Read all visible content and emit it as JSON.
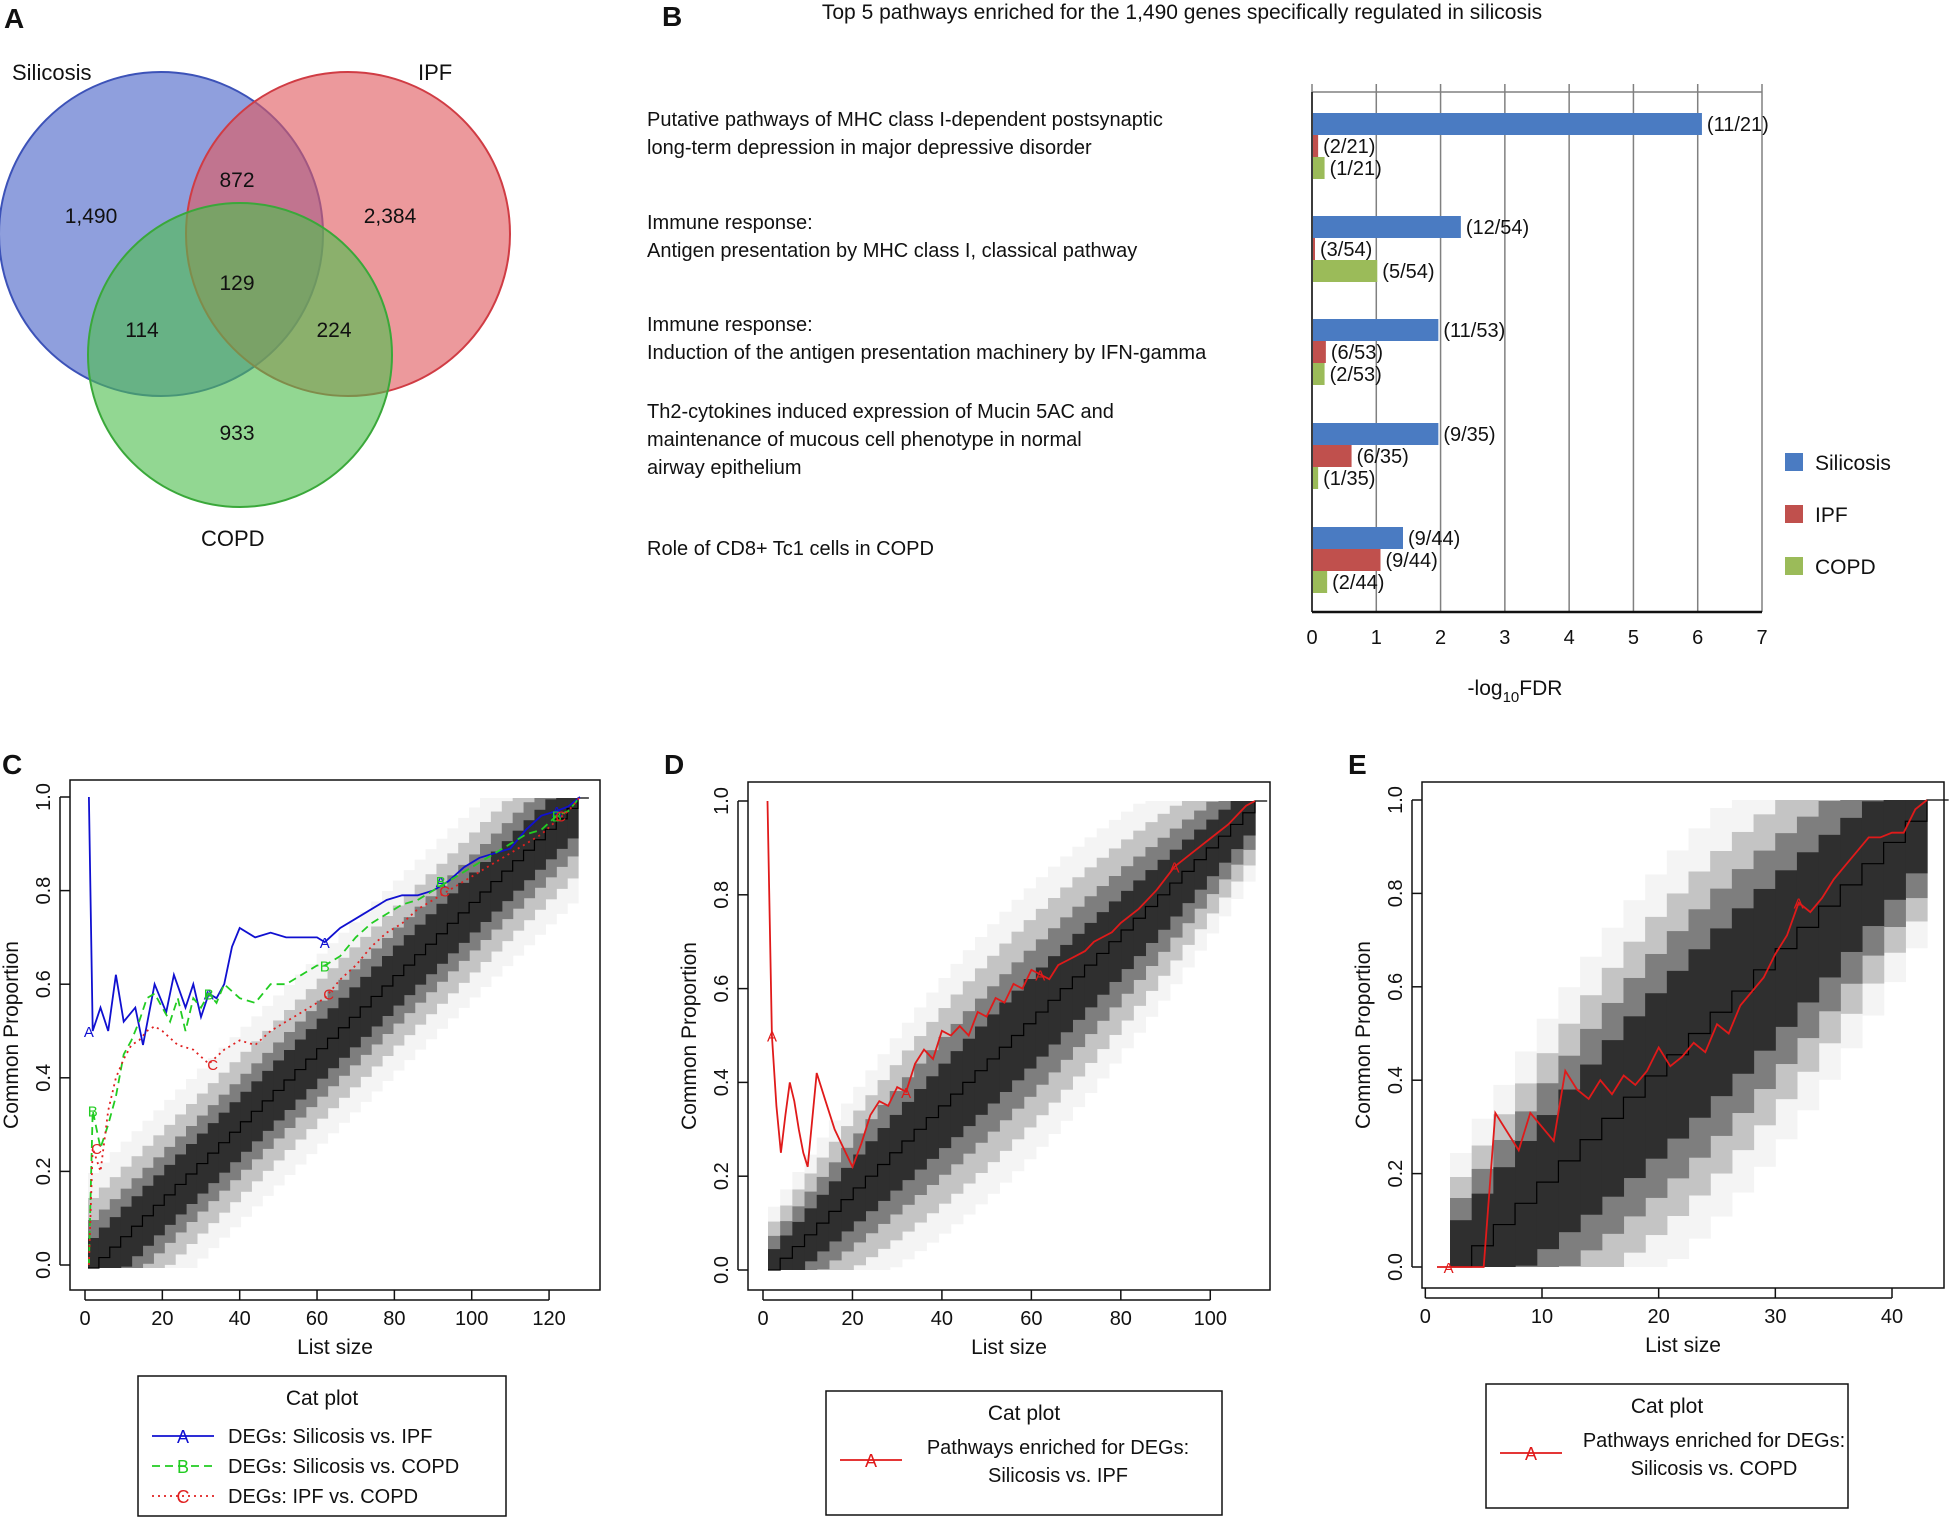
{
  "colors": {
    "silicosis": "#4a64c8",
    "ipf": "#e05a5f",
    "copd": "#4fbf4f",
    "bar_silicosis": "#4a7bc2",
    "bar_ipf": "#c0504d",
    "bar_copd": "#9bbb59",
    "line_a": "#1010d0",
    "line_b": "#22cc22",
    "line_c": "#e02020",
    "line_red": "#e01a1a"
  },
  "panel_labels": {
    "a": "A",
    "b": "B",
    "c": "C",
    "d": "D",
    "e": "E"
  },
  "chart_data": [
    {
      "type": "venn",
      "panel": "A",
      "sets": [
        "Silicosis",
        "IPF",
        "COPD"
      ],
      "regions": [
        {
          "sets": [
            "Silicosis"
          ],
          "label": "1,490"
        },
        {
          "sets": [
            "IPF"
          ],
          "label": "2,384"
        },
        {
          "sets": [
            "COPD"
          ],
          "label": "933"
        },
        {
          "sets": [
            "Silicosis",
            "IPF"
          ],
          "label": "872"
        },
        {
          "sets": [
            "Silicosis",
            "COPD"
          ],
          "label": "114"
        },
        {
          "sets": [
            "IPF",
            "COPD"
          ],
          "label": "224"
        },
        {
          "sets": [
            "Silicosis",
            "IPF",
            "COPD"
          ],
          "label": "129"
        }
      ]
    },
    {
      "type": "bar",
      "orientation": "horizontal",
      "panel": "B",
      "title": "Top 5 pathways enriched for the 1,490 genes specifically regulated in silicosis",
      "xlabel_main": "-log",
      "xlabel_sub": "10",
      "xlabel_tail": "FDR",
      "xlim": [
        0,
        7
      ],
      "xticks": [
        "0",
        "1",
        "2",
        "3",
        "4",
        "5",
        "6",
        "7"
      ],
      "legend": [
        "Silicosis",
        "IPF",
        "COPD"
      ],
      "categories": [
        {
          "lines": [
            "Putative pathways of MHC class I-dependent postsynaptic",
            "long-term depression in major depressive disorder"
          ]
        },
        {
          "lines": [
            "Immune response:",
            "Antigen presentation by MHC class I, classical pathway"
          ]
        },
        {
          "lines": [
            "Immune response:",
            "Induction of the antigen presentation machinery by IFN-gamma"
          ]
        },
        {
          "lines": [
            "Th2-cytokines induced expression of Mucin 5AC and",
            "maintenance of mucous cell phenotype in normal",
            "airway epithelium"
          ]
        },
        {
          "lines": [
            "Role of CD8+ Tc1 cells in COPD"
          ]
        }
      ],
      "series": [
        {
          "name": "Silicosis",
          "values": [
            6.05,
            2.3,
            1.95,
            1.95,
            1.4
          ],
          "labels": [
            "(11/21)",
            "(12/54)",
            "(11/53)",
            "(9/35)",
            "(9/44)"
          ]
        },
        {
          "name": "IPF",
          "values": [
            0.08,
            0.02,
            0.2,
            0.6,
            1.05
          ],
          "labels": [
            "(2/21)",
            "(3/54)",
            "(6/53)",
            "(6/35)",
            "(9/44)"
          ]
        },
        {
          "name": "COPD",
          "values": [
            0.18,
            1.0,
            0.18,
            0.08,
            0.22
          ],
          "labels": [
            "(1/21)",
            "(5/54)",
            "(2/53)",
            "(1/35)",
            "(2/44)"
          ]
        }
      ]
    },
    {
      "type": "line",
      "panel": "C",
      "xlabel": "List size",
      "ylabel": "Common Proportion",
      "xlim": [
        0,
        128
      ],
      "ylim": [
        0,
        1
      ],
      "xticks": [
        0,
        20,
        40,
        60,
        80,
        100,
        120
      ],
      "yticks": [
        "0.0",
        "0.2",
        "0.4",
        "0.6",
        "0.8",
        "1.0"
      ],
      "legend_title": "Cat plot",
      "series": [
        {
          "name": "DEGs: Silicosis vs. IPF",
          "marker": "A",
          "style": "solid",
          "x": [
            1,
            2,
            4,
            6,
            8,
            10,
            13,
            15,
            18,
            21,
            23,
            26,
            28,
            30,
            32,
            34,
            36,
            38,
            40,
            44,
            48,
            52,
            56,
            60,
            62,
            66,
            70,
            74,
            78,
            82,
            86,
            90,
            94,
            98,
            102,
            106,
            110,
            114,
            118,
            122,
            125,
            128
          ],
          "y": [
            1.0,
            0.5,
            0.55,
            0.5,
            0.62,
            0.52,
            0.55,
            0.47,
            0.6,
            0.54,
            0.62,
            0.55,
            0.6,
            0.53,
            0.58,
            0.57,
            0.6,
            0.68,
            0.72,
            0.7,
            0.71,
            0.7,
            0.7,
            0.7,
            0.69,
            0.72,
            0.74,
            0.76,
            0.78,
            0.79,
            0.79,
            0.8,
            0.82,
            0.85,
            0.87,
            0.88,
            0.89,
            0.93,
            0.96,
            0.97,
            0.98,
            1.0
          ],
          "markers": [
            [
              1,
              0.5
            ],
            [
              32,
              0.58
            ],
            [
              62,
              0.69
            ],
            [
              92,
              0.82
            ],
            [
              122,
              0.97
            ]
          ]
        },
        {
          "name": "DEGs: Silicosis vs. COPD",
          "marker": "B",
          "style": "dashed",
          "x": [
            1,
            2,
            4,
            6,
            8,
            10,
            12,
            14,
            16,
            18,
            20,
            22,
            24,
            26,
            28,
            30,
            32,
            34,
            36,
            40,
            44,
            48,
            52,
            56,
            60,
            62,
            66,
            70,
            74,
            78,
            82,
            86,
            90,
            94,
            98,
            102,
            106,
            110,
            114,
            118,
            122,
            125,
            128
          ],
          "y": [
            0.0,
            0.33,
            0.25,
            0.3,
            0.36,
            0.45,
            0.48,
            0.52,
            0.57,
            0.58,
            0.55,
            0.52,
            0.57,
            0.5,
            0.57,
            0.55,
            0.58,
            0.56,
            0.6,
            0.57,
            0.56,
            0.6,
            0.6,
            0.62,
            0.64,
            0.64,
            0.66,
            0.7,
            0.73,
            0.75,
            0.77,
            0.78,
            0.8,
            0.82,
            0.84,
            0.86,
            0.88,
            0.9,
            0.92,
            0.93,
            0.96,
            0.97,
            1.0
          ],
          "markers": [
            [
              2,
              0.33
            ],
            [
              32,
              0.58
            ],
            [
              62,
              0.64
            ],
            [
              92,
              0.82
            ],
            [
              122,
              0.96
            ]
          ]
        },
        {
          "name": "DEGs: IPF vs. COPD",
          "marker": "C",
          "style": "dotted",
          "x": [
            1,
            2,
            4,
            6,
            8,
            10,
            12,
            14,
            16,
            18,
            20,
            24,
            28,
            32,
            36,
            40,
            44,
            48,
            52,
            56,
            60,
            62,
            66,
            70,
            74,
            78,
            82,
            86,
            90,
            94,
            98,
            102,
            106,
            110,
            114,
            118,
            122,
            125,
            128
          ],
          "y": [
            0.0,
            0.25,
            0.2,
            0.33,
            0.4,
            0.44,
            0.47,
            0.48,
            0.5,
            0.51,
            0.5,
            0.47,
            0.46,
            0.43,
            0.46,
            0.48,
            0.47,
            0.5,
            0.52,
            0.54,
            0.56,
            0.57,
            0.61,
            0.64,
            0.68,
            0.71,
            0.73,
            0.76,
            0.78,
            0.8,
            0.82,
            0.84,
            0.86,
            0.88,
            0.9,
            0.92,
            0.95,
            0.97,
            1.0
          ],
          "markers": [
            [
              3,
              0.25
            ],
            [
              33,
              0.43
            ],
            [
              63,
              0.58
            ],
            [
              93,
              0.8
            ],
            [
              123,
              0.96
            ]
          ]
        }
      ]
    },
    {
      "type": "line",
      "panel": "D",
      "xlabel": "List size",
      "ylabel": "Common Proportion",
      "xlim": [
        0,
        110
      ],
      "ylim": [
        0,
        1
      ],
      "xticks": [
        0,
        20,
        40,
        60,
        80,
        100
      ],
      "yticks": [
        "0.0",
        "0.2",
        "0.4",
        "0.6",
        "0.8",
        "1.0"
      ],
      "legend_title": "Cat plot",
      "series": [
        {
          "name": "Pathways enriched for DEGs: Silicosis vs. IPF",
          "marker": "A",
          "style": "solid",
          "x": [
            1,
            1.5,
            2,
            3,
            4,
            5,
            6,
            7,
            8,
            9,
            10,
            12,
            14,
            16,
            18,
            20,
            22,
            24,
            26,
            28,
            30,
            32,
            34,
            36,
            38,
            40,
            42,
            44,
            46,
            48,
            50,
            52,
            54,
            56,
            58,
            60,
            62,
            64,
            66,
            68,
            70,
            72,
            74,
            76,
            78,
            80,
            84,
            88,
            92,
            96,
            100,
            104,
            108,
            110
          ],
          "y": [
            1.0,
            0.75,
            0.5,
            0.35,
            0.25,
            0.33,
            0.4,
            0.36,
            0.3,
            0.25,
            0.22,
            0.42,
            0.36,
            0.3,
            0.26,
            0.22,
            0.27,
            0.33,
            0.36,
            0.35,
            0.39,
            0.38,
            0.44,
            0.47,
            0.45,
            0.51,
            0.5,
            0.52,
            0.5,
            0.55,
            0.54,
            0.58,
            0.57,
            0.61,
            0.6,
            0.64,
            0.63,
            0.62,
            0.65,
            0.66,
            0.67,
            0.68,
            0.7,
            0.71,
            0.72,
            0.74,
            0.77,
            0.81,
            0.86,
            0.89,
            0.92,
            0.95,
            0.99,
            1.0
          ],
          "markers": [
            [
              2,
              0.5
            ],
            [
              32,
              0.38
            ],
            [
              62,
              0.63
            ],
            [
              92,
              0.86
            ]
          ]
        }
      ]
    },
    {
      "type": "line",
      "panel": "E",
      "xlabel": "List size",
      "ylabel": "Common Proportion",
      "xlim": [
        1,
        43
      ],
      "ylim": [
        0,
        1
      ],
      "xticks": [
        0,
        10,
        20,
        30,
        40
      ],
      "yticks": [
        "0.0",
        "0.2",
        "0.4",
        "0.6",
        "0.8",
        "1.0"
      ],
      "legend_title": "Cat plot",
      "series": [
        {
          "name": "Pathways enriched for DEGs: Silicosis vs. COPD",
          "marker": "A",
          "style": "solid",
          "x": [
            1,
            2,
            3,
            4,
            5,
            6,
            7,
            8,
            9,
            10,
            11,
            12,
            13,
            14,
            15,
            16,
            17,
            18,
            19,
            20,
            21,
            22,
            23,
            24,
            25,
            26,
            27,
            28,
            29,
            30,
            31,
            32,
            33,
            34,
            35,
            36,
            37,
            38,
            39,
            40,
            41,
            42,
            43
          ],
          "y": [
            0.0,
            0.0,
            0.0,
            0.0,
            0.0,
            0.33,
            0.29,
            0.25,
            0.33,
            0.3,
            0.27,
            0.42,
            0.38,
            0.36,
            0.4,
            0.37,
            0.41,
            0.39,
            0.42,
            0.47,
            0.43,
            0.45,
            0.48,
            0.46,
            0.52,
            0.5,
            0.56,
            0.59,
            0.62,
            0.67,
            0.71,
            0.78,
            0.76,
            0.79,
            0.83,
            0.86,
            0.89,
            0.92,
            0.92,
            0.93,
            0.93,
            0.98,
            1.0
          ],
          "markers": [
            [
              2,
              0.0
            ],
            [
              32,
              0.78
            ]
          ]
        }
      ]
    }
  ]
}
